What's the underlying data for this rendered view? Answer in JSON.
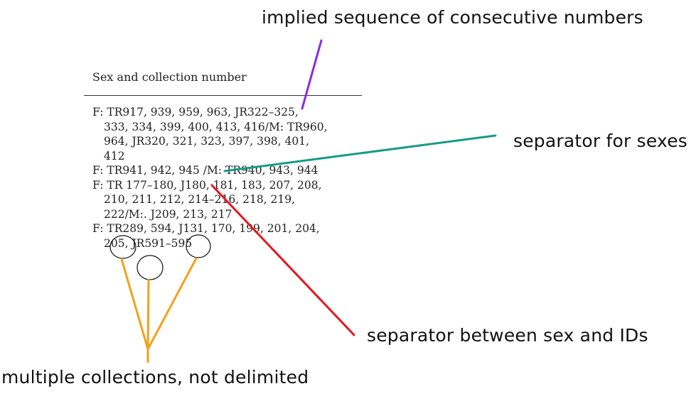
{
  "table": {
    "header": "Sex and collection number",
    "rows": [
      {
        "lines": [
          "F: TR917, 939, 959, 963, JR322–325,",
          "333, 334, 399, 400, 413, 416/M: TR960,",
          "964, JR320, 321, 323, 397, 398, 401,",
          "412"
        ]
      },
      {
        "lines": [
          "F: TR941, 942, 945 /M: TR940, 943, 944"
        ]
      },
      {
        "lines": [
          "F: TR 177–180, J180, 181, 183, 207, 208,",
          "210, 211, 212, 214–216, 218, 219,",
          "222/M:. J209, 213, 217"
        ]
      },
      {
        "lines": [
          "F: TR289, 594, J131, 170, 199, 201, 204,",
          "205, JR591–595"
        ]
      }
    ]
  },
  "annotations": {
    "implied": {
      "text": "implied sequence of consecutive numbers",
      "color": "#8a2be2"
    },
    "sexes": {
      "text": "separator for sexes",
      "color": "#169c86"
    },
    "sex_ids": {
      "text": "separator between sex and IDs",
      "color": "#e8141c"
    },
    "multiple": {
      "text": "multiple collections, not delimited",
      "color": "#f5a01a"
    }
  }
}
